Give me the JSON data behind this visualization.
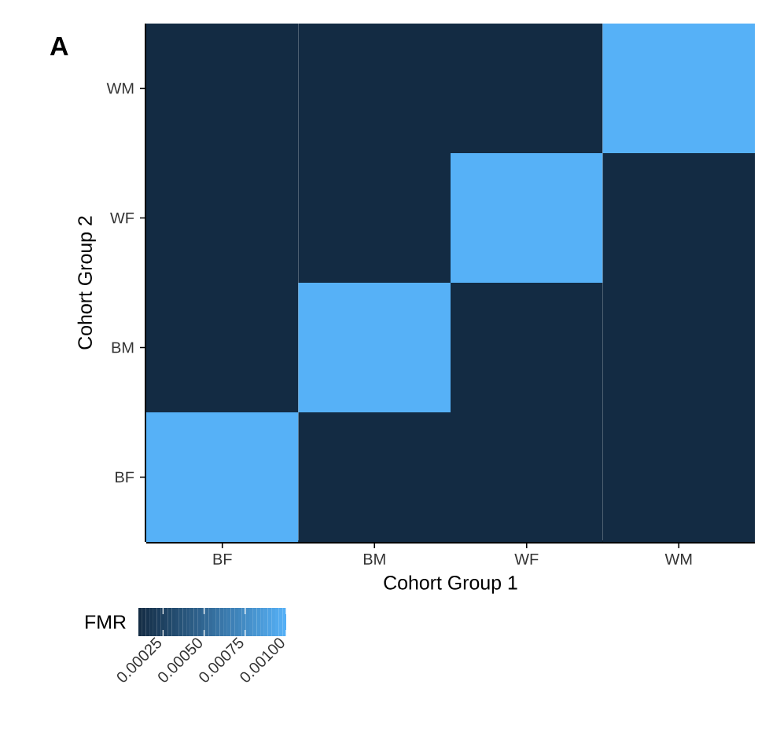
{
  "chart_data": {
    "type": "heatmap",
    "categories": [
      "BF",
      "BM",
      "WF",
      "WM"
    ],
    "y_categories": [
      "WM",
      "WF",
      "BM",
      "BF"
    ],
    "cells": [
      [
        0.0001,
        0.0001,
        0.0001,
        0.001
      ],
      [
        0.0001,
        0.0001,
        0.001,
        0.0001
      ],
      [
        0.0001,
        0.001,
        0.0001,
        0.0001
      ],
      [
        0.001,
        0.0001,
        0.0001,
        0.0001
      ]
    ],
    "xlabel": "Cohort Group 1",
    "ylabel": "Cohort Group 2",
    "clabel": "FMR",
    "clim": [
      0.0001,
      0.001
    ],
    "cticks": [
      {
        "value": 0.00025,
        "label": "0.00025"
      },
      {
        "value": 0.0005,
        "label": "0.00050"
      },
      {
        "value": 0.00075,
        "label": "0.00075"
      },
      {
        "value": 0.001,
        "label": "0.00100"
      }
    ],
    "colors": [
      "#132b43",
      "#56b1f7"
    ],
    "annotations": [
      "A"
    ]
  }
}
